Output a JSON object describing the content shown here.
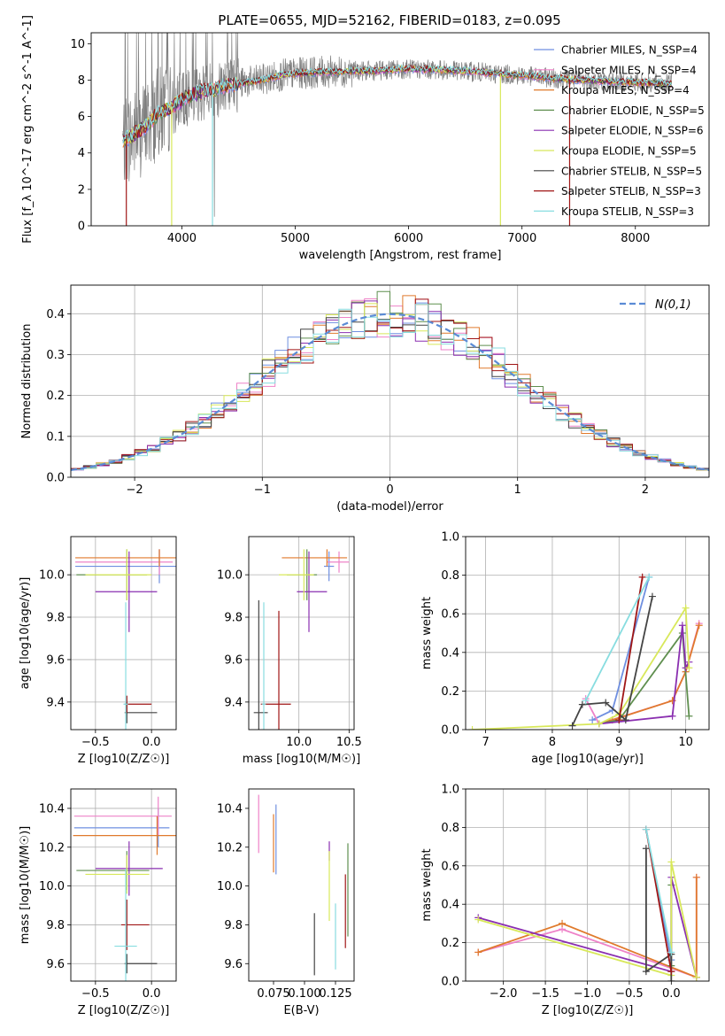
{
  "figure_title": "PLATE=0655, MJD=52162, FIBERID=0183, z=0.095",
  "colors": {
    "Chabrier MILES": "#6f8fe0",
    "Salpeter MILES": "#ee82c8",
    "Kroupa MILES": "#e07a2c",
    "Chabrier ELODIE": "#5f8f4f",
    "Salpeter ELODIE": "#8a2fb0",
    "Kroupa ELODIE": "#d8e85a",
    "Chabrier STELIB": "#444444",
    "Salpeter STELIB": "#a01616",
    "Kroupa STELIB": "#88dde0",
    "data": "#7f7f7f",
    "gaussian": "#5b8bd5"
  },
  "chart_data": [
    {
      "id": "spectrum",
      "type": "line",
      "title": "PLATE=0655, MJD=52162, FIBERID=0183, z=0.095",
      "xlabel": "wavelength [Angstrom, rest frame]",
      "ylabel": "Flux [f_λ 10^-17 erg cm^-2 s^-1 A^-1]",
      "xlim": [
        3200,
        8650
      ],
      "ylim": [
        0,
        10.6
      ],
      "xticks": [
        4000,
        5000,
        6000,
        7000,
        8000
      ],
      "yticks": [
        0,
        2,
        4,
        6,
        8,
        10
      ],
      "grid": false,
      "legend_position": "right",
      "legend": [
        "Chabrier MILES, N_SSP=4",
        "Salpeter MILES, N_SSP=4",
        "Kroupa MILES, N_SSP=4",
        "Chabrier ELODIE, N_SSP=5",
        "Salpeter ELODIE, N_SSP=6",
        "Kroupa ELODIE, N_SSP=5",
        "Chabrier STELIB, N_SSP=5",
        "Salpeter STELIB, N_SSP=3",
        "Kroupa STELIB, N_SSP=3"
      ],
      "model_continuum": {
        "x": [
          3480,
          3550,
          3650,
          3700,
          3800,
          3900,
          4000,
          4100,
          4200,
          4300,
          4400,
          4500,
          4700,
          4900,
          5100,
          5300,
          5500,
          5700,
          5900,
          6100,
          6300,
          6500,
          6700,
          6900,
          7100,
          7300,
          7500,
          7700,
          7900,
          8100,
          8300
        ],
        "y": [
          4.7,
          4.9,
          5.3,
          5.6,
          6.2,
          6.5,
          6.9,
          7.2,
          7.4,
          7.5,
          7.7,
          7.8,
          8.0,
          8.3,
          8.4,
          8.45,
          8.5,
          8.5,
          8.6,
          8.6,
          8.55,
          8.5,
          8.4,
          8.3,
          8.2,
          8.1,
          8.0,
          7.95,
          7.9,
          7.85,
          7.8
        ]
      },
      "data_noise": "higher noise below 4500 A, spikes to top of axis"
    },
    {
      "id": "residuals",
      "type": "histogram",
      "xlabel": "(data-model)/error",
      "ylabel": "Normed distribution",
      "xlim": [
        -2.5,
        2.5
      ],
      "ylim": [
        0,
        0.47
      ],
      "xticks": [
        -2,
        -1,
        0,
        1,
        2
      ],
      "yticks": [
        0.0,
        0.1,
        0.2,
        0.3,
        0.4
      ],
      "grid": true,
      "legend_position": "top-right",
      "legend": [
        "N(0,1)"
      ],
      "bin_width": 0.1,
      "bin_start": -2.5
    },
    {
      "id": "age_vs_Z",
      "type": "errorbar",
      "xlabel": "Z [log10(Z/Z☉)]",
      "ylabel": "age  [log10(age/yr)]",
      "xlim": [
        -0.72,
        0.22
      ],
      "ylim": [
        9.27,
        10.18
      ],
      "xticks": [
        -0.5,
        0.0
      ],
      "yticks": [
        9.4,
        9.6,
        9.8,
        10.0
      ],
      "grid": true,
      "points": [
        {
          "model": "Chabrier MILES",
          "x": 0.07,
          "y": 10.04,
          "xerr": [
            0.75,
            0.15
          ],
          "yerr": [
            0.08,
            0.08
          ]
        },
        {
          "model": "Salpeter MILES",
          "x": 0.07,
          "y": 10.06,
          "xerr": [
            0.75,
            0.12
          ],
          "yerr": [
            0.06,
            0.06
          ]
        },
        {
          "model": "Kroupa MILES",
          "x": 0.07,
          "y": 10.08,
          "xerr": [
            0.75,
            0.15
          ],
          "yerr": [
            0.04,
            0.04
          ]
        },
        {
          "model": "Chabrier ELODIE",
          "x": -0.22,
          "y": 10.0,
          "xerr": [
            0.45,
            0.18
          ],
          "yerr": [
            0.12,
            0.12
          ]
        },
        {
          "model": "Salpeter ELODIE",
          "x": -0.2,
          "y": 9.92,
          "xerr": [
            0.3,
            0.25
          ],
          "yerr": [
            0.19,
            0.19
          ]
        },
        {
          "model": "Kroupa ELODIE",
          "x": -0.22,
          "y": 10.0,
          "xerr": [
            0.37,
            0.22
          ],
          "yerr": [
            0.12,
            0.12
          ]
        },
        {
          "model": "Chabrier STELIB",
          "x": -0.22,
          "y": 9.35,
          "xerr": [
            0.02,
            0.27
          ],
          "yerr": [
            0.05,
            0.05
          ]
        },
        {
          "model": "Salpeter STELIB",
          "x": -0.22,
          "y": 9.39,
          "xerr": [
            0.02,
            0.22
          ],
          "yerr": [
            0.04,
            0.04
          ]
        },
        {
          "model": "Kroupa STELIB",
          "x": -0.23,
          "y": 9.39,
          "xerr": [
            0.02,
            0.02
          ],
          "yerr": [
            0.48,
            0.48
          ]
        }
      ]
    },
    {
      "id": "age_vs_mass",
      "type": "errorbar",
      "xlabel": "mass [log10(M/M☉)]",
      "ylabel": "",
      "xlim": [
        9.5,
        10.55
      ],
      "ylim": [
        9.27,
        10.18
      ],
      "xticks": [
        10.0,
        10.5
      ],
      "yticks": [
        9.4,
        9.6,
        9.8,
        10.0
      ],
      "grid": true,
      "points": [
        {
          "model": "Chabrier MILES",
          "x": 10.3,
          "y": 10.04,
          "xerr": [
            0.05,
            0.05
          ],
          "yerr": [
            0.07,
            0.07
          ]
        },
        {
          "model": "Salpeter MILES",
          "x": 10.4,
          "y": 10.06,
          "xerr": [
            0.12,
            0.1
          ],
          "yerr": [
            0.05,
            0.05
          ]
        },
        {
          "model": "Kroupa MILES",
          "x": 10.28,
          "y": 10.08,
          "xerr": [
            0.45,
            0.2
          ],
          "yerr": [
            0.04,
            0.04
          ]
        },
        {
          "model": "Chabrier ELODIE",
          "x": 10.08,
          "y": 10.0,
          "xerr": [
            0.2,
            0.1
          ],
          "yerr": [
            0.12,
            0.12
          ]
        },
        {
          "model": "Salpeter ELODIE",
          "x": 10.1,
          "y": 9.92,
          "xerr": [
            0.12,
            0.18
          ],
          "yerr": [
            0.19,
            0.19
          ]
        },
        {
          "model": "Kroupa ELODIE",
          "x": 10.05,
          "y": 10.0,
          "xerr": [
            0.25,
            0.1
          ],
          "yerr": [
            0.12,
            0.12
          ]
        },
        {
          "model": "Chabrier STELIB",
          "x": 9.6,
          "y": 9.35,
          "xerr": [
            0.05,
            0.09
          ],
          "yerr": [
            0.53,
            0.53
          ]
        },
        {
          "model": "Salpeter STELIB",
          "x": 9.8,
          "y": 9.39,
          "xerr": [
            0.18,
            0.12
          ],
          "yerr": [
            0.44,
            0.44
          ]
        },
        {
          "model": "Kroupa STELIB",
          "x": 9.65,
          "y": 9.39,
          "xerr": [
            0.02,
            0.02
          ],
          "yerr": [
            0.48,
            0.48
          ]
        }
      ]
    },
    {
      "id": "mass_weight_vs_age",
      "type": "line",
      "xlabel": "age  [log10(age/yr)]",
      "ylabel": "mass weight",
      "xlim": [
        6.7,
        10.35
      ],
      "ylim": [
        0,
        1.0
      ],
      "xticks": [
        7,
        8,
        9,
        10
      ],
      "yticks": [
        0.0,
        0.2,
        0.4,
        0.6,
        0.8,
        1.0
      ],
      "grid": true,
      "series": [
        {
          "model": "Chabrier MILES",
          "x": [
            8.6,
            8.9,
            9.45
          ],
          "y": [
            0.05,
            0.1,
            0.79
          ]
        },
        {
          "model": "Salpeter MILES",
          "x": [
            8.5,
            8.7,
            9.8,
            10.0,
            10.2
          ],
          "y": [
            0.16,
            0.03,
            0.15,
            0.3,
            0.55
          ]
        },
        {
          "model": "Kroupa MILES",
          "x": [
            8.7,
            8.9,
            9.8,
            10.0,
            10.2
          ],
          "y": [
            0.03,
            0.05,
            0.15,
            0.3,
            0.54
          ]
        },
        {
          "model": "Chabrier ELODIE",
          "x": [
            8.7,
            9.0,
            9.95,
            10.05
          ],
          "y": [
            0.03,
            0.05,
            0.5,
            0.07
          ]
        },
        {
          "model": "Salpeter ELODIE",
          "x": [
            8.7,
            9.8,
            9.95,
            10.0,
            10.05
          ],
          "y": [
            0.03,
            0.07,
            0.54,
            0.32,
            0.35
          ]
        },
        {
          "model": "Kroupa ELODIE",
          "x": [
            6.8,
            8.7,
            9.0,
            10.0,
            10.05
          ],
          "y": [
            0.0,
            0.03,
            0.08,
            0.63,
            0.32
          ]
        },
        {
          "model": "Chabrier STELIB",
          "x": [
            8.3,
            8.45,
            8.8,
            9.1,
            9.5
          ],
          "y": [
            0.02,
            0.13,
            0.14,
            0.05,
            0.69
          ]
        },
        {
          "model": "Salpeter STELIB",
          "x": [
            9.0,
            9.35
          ],
          "y": [
            0.05,
            0.79
          ]
        },
        {
          "model": "Kroupa STELIB",
          "x": [
            8.5,
            9.45
          ],
          "y": [
            0.15,
            0.79
          ]
        }
      ]
    },
    {
      "id": "mass_vs_Z",
      "type": "errorbar",
      "xlabel": "Z [log10(Z/Z☉)]",
      "ylabel": "mass [log10(M/M☉)]",
      "xlim": [
        -0.72,
        0.22
      ],
      "ylim": [
        9.51,
        10.5
      ],
      "xticks": [
        -0.5,
        0.0
      ],
      "yticks": [
        9.6,
        9.8,
        10.0,
        10.2,
        10.4
      ],
      "grid": true,
      "points": [
        {
          "model": "Chabrier MILES",
          "x": 0.06,
          "y": 10.3,
          "xerr": [
            0.75,
            0.1
          ],
          "yerr": [
            0.1,
            0.1
          ]
        },
        {
          "model": "Salpeter MILES",
          "x": 0.06,
          "y": 10.36,
          "xerr": [
            0.75,
            0.12
          ],
          "yerr": [
            0.1,
            0.1
          ]
        },
        {
          "model": "Kroupa MILES",
          "x": 0.05,
          "y": 10.26,
          "xerr": [
            0.75,
            0.17
          ],
          "yerr": [
            0.1,
            0.1
          ]
        },
        {
          "model": "Chabrier ELODIE",
          "x": -0.22,
          "y": 10.08,
          "xerr": [
            0.45,
            0.2
          ],
          "yerr": [
            0.1,
            0.1
          ]
        },
        {
          "model": "Salpeter ELODIE",
          "x": -0.2,
          "y": 10.09,
          "xerr": [
            0.3,
            0.3
          ],
          "yerr": [
            0.14,
            0.14
          ]
        },
        {
          "model": "Kroupa ELODIE",
          "x": -0.22,
          "y": 10.06,
          "xerr": [
            0.37,
            0.2
          ],
          "yerr": [
            0.1,
            0.1
          ]
        },
        {
          "model": "Chabrier STELIB",
          "x": -0.22,
          "y": 9.6,
          "xerr": [
            0.02,
            0.27
          ],
          "yerr": [
            0.05,
            0.05
          ]
        },
        {
          "model": "Salpeter STELIB",
          "x": -0.22,
          "y": 9.8,
          "xerr": [
            0.05,
            0.2
          ],
          "yerr": [
            0.13,
            0.13
          ]
        },
        {
          "model": "Kroupa STELIB",
          "x": -0.23,
          "y": 9.69,
          "xerr": [
            0.1,
            0.1
          ],
          "yerr": [
            0.4,
            0.4
          ]
        }
      ]
    },
    {
      "id": "mass_vs_EBV",
      "type": "errorbar",
      "xlabel": "E(B-V)",
      "ylabel": "",
      "xlim": [
        0.055,
        0.14
      ],
      "ylim": [
        9.51,
        10.5
      ],
      "xticks": [
        0.075,
        0.1,
        0.125
      ],
      "ytick_labels": [
        "9.6",
        "9.8",
        "10.0",
        "10.2",
        "10.4"
      ],
      "xtick_labels": [
        "0.075",
        "0.100",
        "0.125"
      ],
      "yticks": [
        9.6,
        9.8,
        10.0,
        10.2,
        10.4
      ],
      "grid": false,
      "points": [
        {
          "model": "Chabrier MILES",
          "x": 0.077,
          "y": 10.24,
          "yerr": [
            0.18,
            0.18
          ]
        },
        {
          "model": "Salpeter MILES",
          "x": 0.063,
          "y": 10.32,
          "yerr": [
            0.15,
            0.15
          ]
        },
        {
          "model": "Kroupa MILES",
          "x": 0.075,
          "y": 10.22,
          "yerr": [
            0.15,
            0.15
          ]
        },
        {
          "model": "Chabrier ELODIE",
          "x": 0.135,
          "y": 9.98,
          "yerr": [
            0.24,
            0.24
          ]
        },
        {
          "model": "Salpeter ELODIE",
          "x": 0.12,
          "y": 10.18,
          "yerr": [
            0.05,
            0.05
          ]
        },
        {
          "model": "Kroupa ELODIE",
          "x": 0.12,
          "y": 10.0,
          "yerr": [
            0.18,
            0.18
          ]
        },
        {
          "model": "Chabrier STELIB",
          "x": 0.108,
          "y": 9.7,
          "yerr": [
            0.16,
            0.16
          ]
        },
        {
          "model": "Salpeter STELIB",
          "x": 0.133,
          "y": 9.87,
          "yerr": [
            0.19,
            0.19
          ]
        },
        {
          "model": "Kroupa STELIB",
          "x": 0.125,
          "y": 9.74,
          "yerr": [
            0.17,
            0.17
          ]
        }
      ]
    },
    {
      "id": "mass_weight_vs_Z",
      "type": "line",
      "xlabel": "Z [log10(Z/Z☉)]",
      "ylabel": "mass weight",
      "xlim": [
        -2.45,
        0.45
      ],
      "ylim": [
        0,
        1.0
      ],
      "xticks": [
        -2.0,
        -1.5,
        -1.0,
        -0.5,
        0.0
      ],
      "yticks": [
        0.0,
        0.2,
        0.4,
        0.6,
        0.8,
        1.0
      ],
      "grid": true,
      "series": [
        {
          "model": "Chabrier MILES",
          "x": [
            -0.3,
            0.0
          ],
          "y": [
            0.79,
            0.11
          ]
        },
        {
          "model": "Salpeter MILES",
          "x": [
            -2.3,
            -1.3,
            0.3,
            0.3
          ],
          "y": [
            0.15,
            0.27,
            0.02,
            0.54
          ]
        },
        {
          "model": "Kroupa MILES",
          "x": [
            -2.3,
            -1.3,
            0.3,
            0.3
          ],
          "y": [
            0.15,
            0.3,
            0.02,
            0.54
          ]
        },
        {
          "model": "Chabrier ELODIE",
          "x": [
            0.0,
            0.0
          ],
          "y": [
            0.08,
            0.5
          ]
        },
        {
          "model": "Salpeter ELODIE",
          "x": [
            -2.3,
            0.0,
            0.0,
            0.3
          ],
          "y": [
            0.33,
            0.05,
            0.54,
            0.02
          ]
        },
        {
          "model": "Kroupa ELODIE",
          "x": [
            -2.3,
            0.0,
            0.0,
            0.3
          ],
          "y": [
            0.32,
            0.03,
            0.62,
            0.02
          ]
        },
        {
          "model": "Chabrier STELIB",
          "x": [
            -0.3,
            -0.3,
            0.0,
            0.0
          ],
          "y": [
            0.69,
            0.05,
            0.14,
            0.0
          ]
        },
        {
          "model": "Salpeter STELIB",
          "x": [
            -0.3,
            0.0
          ],
          "y": [
            0.79,
            0.05
          ]
        },
        {
          "model": "Kroupa STELIB",
          "x": [
            -0.3,
            0.0
          ],
          "y": [
            0.79,
            0.15
          ]
        }
      ]
    }
  ]
}
